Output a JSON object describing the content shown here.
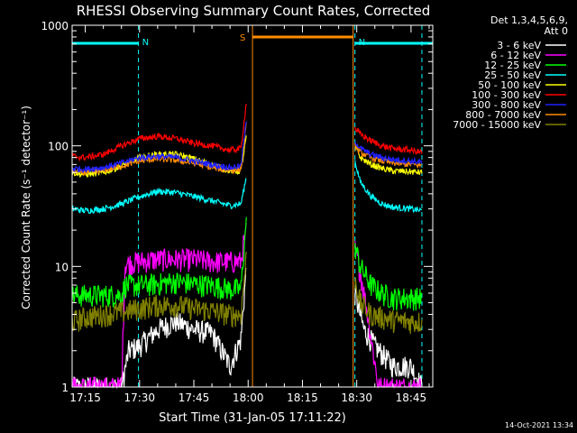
{
  "chart_data": {
    "type": "line",
    "title": "RHESSI Observing Summary Count Rates, Corrected",
    "xlabel": "Start Time (31-Jan-05 17:11:22)",
    "ylabel": "Corrected Count Rate (s⁻¹ detector⁻¹)",
    "x_ticks": [
      "17:15",
      "17:30",
      "17:45",
      "18:00",
      "18:15",
      "18:30",
      "18:45"
    ],
    "x_tick_minutes": [
      15,
      30,
      45,
      60,
      75,
      90,
      105
    ],
    "xlim_minutes": [
      11.37,
      111.0
    ],
    "y_scale": "log",
    "ylim": [
      1,
      1000
    ],
    "y_ticks": [
      "1",
      "10",
      "100",
      "1000"
    ],
    "legend_header": [
      "Det 1,3,4,5,6,9,",
      "Att 0"
    ],
    "legend_position": "right",
    "footer_date": "14-Oct-2021 13:34",
    "flags": [
      {
        "label": "N",
        "color": "#00ffff",
        "x_minutes": [
          11.37,
          29.7
        ]
      },
      {
        "label": "N",
        "color": "#00ffff",
        "x_minutes": [
          89.5,
          111.0
        ]
      },
      {
        "label": "S",
        "color": "#ff8c00",
        "x_minutes": [
          61.2,
          89.0
        ]
      }
    ],
    "night_boundaries_minutes": [
      29.7,
      89.5,
      108.0
    ],
    "saa_boundaries_minutes": [
      61.2,
      89.0
    ],
    "data_gap_minutes": [
      59.5,
      89.5
    ],
    "series": [
      {
        "name": "3 - 6 keV",
        "color": "#ffffff",
        "x": [
          11.4,
          25,
          27,
          30,
          35,
          40,
          45,
          50,
          55,
          58,
          59.5,
          89.5,
          92,
          95,
          100,
          105,
          108
        ],
        "y": [
          1,
          1,
          2,
          2.2,
          3,
          3.5,
          3,
          2.8,
          1.5,
          2.5,
          10,
          6,
          3,
          2.2,
          1.5,
          1.5,
          1
        ]
      },
      {
        "name": "6 - 12 keV",
        "color": "#ff00ff",
        "x": [
          11.4,
          25,
          26,
          30,
          35,
          40,
          45,
          50,
          55,
          58,
          59.5,
          89.5,
          91,
          93,
          96,
          100,
          105,
          108
        ],
        "y": [
          1,
          1,
          10.5,
          11,
          11.5,
          11.5,
          11.5,
          11,
          11,
          11,
          22,
          14,
          9,
          4,
          1,
          1,
          1,
          1
        ]
      },
      {
        "name": "12 - 25 keV",
        "color": "#00ff00",
        "x": [
          11.4,
          20,
          25,
          26,
          30,
          35,
          40,
          45,
          50,
          55,
          58,
          59.5,
          89.5,
          91,
          94,
          97,
          100,
          105,
          108
        ],
        "y": [
          5.8,
          5.8,
          5.8,
          7,
          7,
          7.2,
          7.5,
          7.2,
          7,
          6.5,
          6.5,
          25,
          15,
          10,
          7,
          6,
          5.5,
          5.5,
          5.5
        ]
      },
      {
        "name": "25 - 50 keV",
        "color": "#00ffff",
        "x": [
          11.4,
          15,
          20,
          25,
          30,
          35,
          40,
          45,
          50,
          55,
          58,
          59.5,
          89.5,
          91,
          94,
          97,
          100,
          105,
          108
        ],
        "y": [
          30,
          29,
          30,
          33,
          38,
          42,
          41,
          38,
          35,
          32,
          33,
          55,
          75,
          50,
          38,
          33,
          31,
          30,
          29
        ]
      },
      {
        "name": "50 - 100 keV",
        "color": "#ffff00",
        "x": [
          11.4,
          15,
          20,
          25,
          30,
          35,
          40,
          45,
          50,
          55,
          58,
          59.5,
          89.5,
          91,
          94,
          97,
          100,
          105,
          108
        ],
        "y": [
          60,
          58,
          60,
          68,
          80,
          85,
          85,
          78,
          70,
          62,
          62,
          120,
          100,
          80,
          70,
          65,
          62,
          61,
          60
        ]
      },
      {
        "name": "100 - 300 keV",
        "color": "#ff0000",
        "x": [
          11.4,
          15,
          20,
          25,
          30,
          35,
          40,
          45,
          50,
          55,
          58,
          59.5,
          89.5,
          91,
          94,
          97,
          100,
          105,
          108
        ],
        "y": [
          82,
          80,
          85,
          100,
          115,
          120,
          115,
          105,
          100,
          92,
          95,
          230,
          140,
          125,
          110,
          100,
          95,
          92,
          88
        ]
      },
      {
        "name": "300 - 800 keV",
        "color": "#2020ff",
        "x": [
          11.4,
          15,
          20,
          25,
          30,
          35,
          40,
          45,
          50,
          55,
          58,
          59.5,
          89.5,
          91,
          94,
          97,
          100,
          105,
          108
        ],
        "y": [
          65,
          64,
          66,
          72,
          80,
          82,
          80,
          75,
          70,
          66,
          68,
          160,
          110,
          95,
          85,
          80,
          77,
          75,
          73
        ]
      },
      {
        "name": "800 - 7000 keV",
        "color": "#ff8c00",
        "x": [
          11.4,
          15,
          20,
          25,
          30,
          35,
          40,
          45,
          50,
          55,
          58,
          59.5,
          89.5,
          91,
          94,
          97,
          100,
          105,
          108
        ],
        "y": [
          62,
          60,
          63,
          68,
          75,
          78,
          76,
          72,
          66,
          63,
          64,
          150,
          100,
          88,
          80,
          75,
          72,
          70,
          69
        ]
      },
      {
        "name": "7000 - 15000 keV",
        "color": "#808000",
        "x": [
          11.4,
          15,
          20,
          25,
          30,
          35,
          40,
          45,
          50,
          55,
          58,
          59.5,
          89.5,
          91,
          94,
          97,
          100,
          105,
          108
        ],
        "y": [
          3.5,
          3.8,
          4,
          4.2,
          4.5,
          4.8,
          4.8,
          4.5,
          4.3,
          4,
          4,
          12,
          8,
          5,
          4,
          3.8,
          3.6,
          3.5,
          3.5
        ]
      }
    ]
  }
}
